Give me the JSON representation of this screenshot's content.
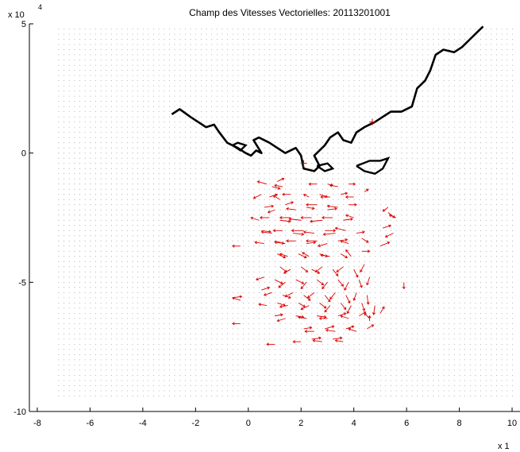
{
  "chart_data": {
    "type": "quiver",
    "title": "Champ des Vitesses Vectorielles: 20113201001",
    "xlabel": "",
    "ylabel": "",
    "x_multiplier_label": "x 1",
    "y_multiplier_label": "x 10",
    "y_multiplier_exponent": "4",
    "xlim": [
      -8.3,
      10.3
    ],
    "ylim": [
      -10,
      5
    ],
    "x_ticks": [
      "-8",
      "-6",
      "-4",
      "-2",
      "0",
      "2",
      "4",
      "6",
      "8",
      "10"
    ],
    "y_ticks": [
      "5",
      "0",
      "-5",
      "-10"
    ],
    "grid_points": {
      "x_range": [
        -7.2,
        10.0
      ],
      "y_range": [
        -9.4,
        4.8
      ],
      "spacing": 0.2,
      "color": "#888888"
    },
    "colors": {
      "vectors": "#dd0000",
      "coastline": "#000000",
      "grid": "#888888"
    },
    "coastline": [
      [
        -2.9,
        1.5
      ],
      [
        -2.6,
        1.7
      ],
      [
        -2.2,
        1.4
      ],
      [
        -1.9,
        1.2
      ],
      [
        -1.6,
        1.0
      ],
      [
        -1.3,
        1.1
      ],
      [
        -1.1,
        0.8
      ],
      [
        -0.8,
        0.4
      ],
      [
        -0.6,
        0.3
      ],
      [
        -0.4,
        0.2
      ],
      [
        -0.1,
        0.0
      ],
      [
        0.1,
        -0.1
      ],
      [
        0.3,
        0.1
      ],
      [
        0.5,
        0.0
      ],
      [
        0.2,
        0.5
      ],
      [
        0.4,
        0.6
      ],
      [
        0.8,
        0.4
      ],
      [
        1.1,
        0.2
      ],
      [
        1.4,
        0.0
      ],
      [
        1.6,
        0.1
      ],
      [
        1.8,
        0.2
      ],
      [
        2.0,
        -0.1
      ],
      [
        2.1,
        -0.6
      ],
      [
        2.5,
        -0.7
      ],
      [
        2.7,
        -0.5
      ],
      [
        2.5,
        -0.1
      ],
      [
        2.9,
        0.3
      ],
      [
        3.1,
        0.6
      ],
      [
        3.4,
        0.8
      ],
      [
        3.6,
        0.5
      ],
      [
        3.9,
        0.4
      ],
      [
        4.1,
        0.8
      ],
      [
        4.4,
        1.0
      ],
      [
        4.8,
        1.2
      ],
      [
        5.1,
        1.4
      ],
      [
        5.4,
        1.6
      ],
      [
        5.8,
        1.6
      ],
      [
        6.2,
        1.8
      ],
      [
        6.4,
        2.5
      ],
      [
        6.7,
        2.8
      ],
      [
        6.9,
        3.2
      ],
      [
        7.1,
        3.8
      ],
      [
        7.4,
        4.0
      ],
      [
        7.8,
        3.9
      ],
      [
        8.1,
        4.1
      ],
      [
        8.4,
        4.4
      ],
      [
        8.7,
        4.7
      ],
      [
        8.9,
        4.9
      ]
    ],
    "coastline_islands": [
      [
        [
          -0.6,
          0.3
        ],
        [
          -0.4,
          0.4
        ],
        [
          -0.1,
          0.3
        ],
        [
          -0.3,
          0.1
        ],
        [
          -0.6,
          0.3
        ]
      ],
      [
        [
          4.1,
          -0.5
        ],
        [
          4.4,
          -0.7
        ],
        [
          4.8,
          -0.8
        ],
        [
          5.1,
          -0.6
        ],
        [
          5.3,
          -0.2
        ],
        [
          5.0,
          -0.3
        ],
        [
          4.6,
          -0.3
        ],
        [
          4.1,
          -0.5
        ]
      ],
      [
        [
          2.6,
          -0.5
        ],
        [
          2.9,
          -0.7
        ],
        [
          3.2,
          -0.6
        ],
        [
          3.0,
          -0.4
        ],
        [
          2.6,
          -0.5
        ]
      ]
    ],
    "markers": [
      {
        "x": 4.7,
        "y": 1.2,
        "symbol": "+"
      },
      {
        "x": 2.1,
        "y": -0.4,
        "symbol": "+"
      }
    ],
    "vectors": [
      [
        0.7,
        -1.2,
        -0.35,
        0.1
      ],
      [
        0.9,
        -1.3,
        0.3,
        -0.08
      ],
      [
        1.1,
        -1.1,
        0.25,
        0.12
      ],
      [
        1.3,
        -1.3,
        -0.3,
        0.05
      ],
      [
        2.6,
        -1.2,
        -0.3,
        0.0
      ],
      [
        3.0,
        -1.2,
        0.2,
        -0.05
      ],
      [
        3.4,
        -1.3,
        -0.3,
        0.05
      ],
      [
        3.8,
        -1.2,
        0.25,
        0.0
      ],
      [
        0.5,
        -1.6,
        -0.3,
        -0.15
      ],
      [
        0.8,
        -1.7,
        0.3,
        0.1
      ],
      [
        1.2,
        -1.8,
        -0.25,
        0.15
      ],
      [
        1.6,
        -1.6,
        -0.3,
        0.0
      ],
      [
        2.3,
        -1.7,
        -0.2,
        0.1
      ],
      [
        2.7,
        -1.6,
        0.3,
        -0.1
      ],
      [
        3.1,
        -1.7,
        -0.35,
        0.0
      ],
      [
        3.5,
        -1.6,
        0.25,
        0.05
      ],
      [
        4.0,
        -1.7,
        -0.3,
        0.0
      ],
      [
        4.4,
        -1.5,
        0.15,
        0.1
      ],
      [
        0.6,
        -2.1,
        0.35,
        0.05
      ],
      [
        1.0,
        -2.2,
        -0.25,
        -0.1
      ],
      [
        1.4,
        -2.0,
        0.3,
        0.1
      ],
      [
        1.8,
        -2.2,
        -0.35,
        0.05
      ],
      [
        2.2,
        -2.1,
        0.3,
        -0.05
      ],
      [
        2.6,
        -2.0,
        -0.4,
        0.0
      ],
      [
        3.0,
        -2.2,
        0.35,
        0.05
      ],
      [
        3.4,
        -2.1,
        -0.4,
        0.05
      ],
      [
        3.8,
        -2.0,
        0.3,
        0.0
      ],
      [
        0.4,
        -2.6,
        -0.3,
        0.1
      ],
      [
        0.8,
        -2.5,
        -0.35,
        0.0
      ],
      [
        1.2,
        -2.6,
        0.4,
        -0.05
      ],
      [
        1.6,
        -2.5,
        -0.4,
        0.0
      ],
      [
        2.0,
        -2.6,
        -0.45,
        0.05
      ],
      [
        2.4,
        -2.5,
        -0.4,
        0.0
      ],
      [
        2.8,
        -2.6,
        -0.45,
        -0.05
      ],
      [
        3.2,
        -2.5,
        -0.4,
        0.0
      ],
      [
        3.6,
        -2.6,
        0.35,
        0.05
      ],
      [
        4.0,
        -2.5,
        -0.3,
        0.1
      ],
      [
        5.3,
        -2.3,
        0.25,
        -0.2
      ],
      [
        5.6,
        -2.5,
        -0.25,
        0.1
      ],
      [
        0.5,
        -3.0,
        0.35,
        -0.05
      ],
      [
        0.9,
        -3.1,
        -0.4,
        0.05
      ],
      [
        1.3,
        -3.0,
        -0.35,
        0.0
      ],
      [
        1.7,
        -3.1,
        0.4,
        -0.05
      ],
      [
        2.1,
        -3.0,
        -0.45,
        0.0
      ],
      [
        2.5,
        -3.1,
        -0.4,
        0.05
      ],
      [
        2.9,
        -3.0,
        0.4,
        0.0
      ],
      [
        3.3,
        -3.1,
        -0.45,
        -0.05
      ],
      [
        3.7,
        -3.0,
        -0.4,
        0.1
      ],
      [
        4.1,
        -3.1,
        0.3,
        0.05
      ],
      [
        5.1,
        -2.9,
        0.3,
        0.1
      ],
      [
        5.5,
        -3.1,
        -0.3,
        -0.15
      ],
      [
        0.6,
        -3.5,
        -0.35,
        0.05
      ],
      [
        1.0,
        -3.4,
        0.35,
        -0.1
      ],
      [
        1.4,
        -3.5,
        -0.4,
        0.05
      ],
      [
        1.8,
        -3.4,
        -0.35,
        0.0
      ],
      [
        2.2,
        -3.5,
        0.35,
        0.05
      ],
      [
        2.6,
        -3.4,
        -0.4,
        0.0
      ],
      [
        3.0,
        -3.5,
        -0.35,
        -0.1
      ],
      [
        3.4,
        -3.4,
        0.35,
        0.05
      ],
      [
        3.8,
        -3.5,
        -0.3,
        0.1
      ],
      [
        4.3,
        -3.3,
        0.25,
        -0.15
      ],
      [
        5.0,
        -3.6,
        0.35,
        0.15
      ],
      [
        -0.3,
        -3.6,
        -0.3,
        0.0
      ],
      [
        1.1,
        -3.9,
        0.3,
        -0.15
      ],
      [
        1.5,
        -4.0,
        -0.3,
        0.1
      ],
      [
        1.9,
        -3.9,
        0.3,
        -0.15
      ],
      [
        2.3,
        -4.0,
        -0.25,
        0.15
      ],
      [
        2.7,
        -3.9,
        0.3,
        -0.1
      ],
      [
        3.1,
        -4.0,
        -0.35,
        0.05
      ],
      [
        3.5,
        -3.9,
        0.25,
        -0.15
      ],
      [
        3.9,
        -4.0,
        -0.2,
        0.25
      ],
      [
        4.3,
        -3.8,
        0.3,
        0.0
      ],
      [
        1.2,
        -4.4,
        0.25,
        -0.2
      ],
      [
        1.6,
        -4.5,
        -0.25,
        -0.15
      ],
      [
        2.0,
        -4.4,
        0.25,
        -0.2
      ],
      [
        2.4,
        -4.5,
        0.3,
        -0.15
      ],
      [
        2.8,
        -4.4,
        -0.25,
        -0.2
      ],
      [
        3.2,
        -4.5,
        0.2,
        -0.25
      ],
      [
        3.6,
        -4.4,
        -0.25,
        -0.2
      ],
      [
        4.0,
        -4.5,
        0.15,
        -0.3
      ],
      [
        4.4,
        -4.3,
        -0.15,
        -0.3
      ],
      [
        0.6,
        -4.8,
        -0.3,
        -0.1
      ],
      [
        1.0,
        -4.9,
        0.3,
        -0.15
      ],
      [
        1.4,
        -5.0,
        -0.25,
        -0.2
      ],
      [
        1.8,
        -4.9,
        0.3,
        -0.15
      ],
      [
        2.2,
        -5.0,
        -0.2,
        -0.25
      ],
      [
        2.6,
        -4.9,
        0.25,
        -0.2
      ],
      [
        3.0,
        -5.0,
        -0.2,
        -0.25
      ],
      [
        3.4,
        -4.9,
        0.2,
        -0.25
      ],
      [
        3.8,
        -5.0,
        -0.15,
        -0.3
      ],
      [
        4.2,
        -4.9,
        0.1,
        -0.3
      ],
      [
        4.6,
        -4.8,
        -0.1,
        -0.3
      ],
      [
        5.9,
        -5.0,
        0.0,
        -0.25
      ],
      [
        0.5,
        -5.3,
        0.3,
        0.1
      ],
      [
        0.9,
        -5.4,
        -0.3,
        -0.1
      ],
      [
        1.3,
        -5.5,
        0.3,
        -0.1
      ],
      [
        1.7,
        -5.4,
        -0.3,
        -0.15
      ],
      [
        2.1,
        -5.5,
        0.25,
        -0.2
      ],
      [
        2.5,
        -5.4,
        -0.25,
        -0.2
      ],
      [
        2.9,
        -5.5,
        0.2,
        -0.25
      ],
      [
        3.3,
        -5.4,
        -0.2,
        -0.25
      ],
      [
        3.7,
        -5.5,
        0.15,
        -0.3
      ],
      [
        4.1,
        -5.4,
        -0.1,
        -0.3
      ],
      [
        4.5,
        -5.5,
        0.05,
        -0.35
      ],
      [
        -0.6,
        -5.6,
        0.35,
        0.05
      ],
      [
        -0.3,
        -5.7,
        -0.3,
        0.1
      ],
      [
        0.7,
        -5.9,
        -0.3,
        0.05
      ],
      [
        1.1,
        -5.8,
        0.3,
        -0.1
      ],
      [
        1.5,
        -5.9,
        -0.3,
        -0.05
      ],
      [
        1.9,
        -5.8,
        0.25,
        -0.15
      ],
      [
        2.3,
        -5.9,
        -0.3,
        -0.15
      ],
      [
        2.7,
        -5.8,
        0.25,
        -0.2
      ],
      [
        3.1,
        -5.9,
        -0.2,
        -0.25
      ],
      [
        3.5,
        -5.8,
        0.2,
        -0.25
      ],
      [
        3.9,
        -5.9,
        -0.15,
        -0.3
      ],
      [
        4.3,
        -5.8,
        0.1,
        -0.3
      ],
      [
        4.8,
        -5.9,
        -0.05,
        -0.35
      ],
      [
        1.0,
        -6.3,
        0.3,
        0.05
      ],
      [
        1.4,
        -6.4,
        -0.3,
        -0.1
      ],
      [
        1.8,
        -6.3,
        0.3,
        -0.05
      ],
      [
        2.2,
        -6.4,
        -0.3,
        0.05
      ],
      [
        2.6,
        -6.3,
        0.35,
        -0.05
      ],
      [
        3.0,
        -6.4,
        -0.3,
        0.0
      ],
      [
        3.4,
        -6.3,
        0.3,
        0.1
      ],
      [
        3.8,
        -6.4,
        -0.3,
        0.1
      ],
      [
        4.2,
        -6.3,
        0.25,
        0.15
      ],
      [
        4.6,
        -6.4,
        -0.2,
        0.2
      ],
      [
        5.0,
        -6.2,
        0.15,
        0.25
      ],
      [
        -0.3,
        -6.6,
        -0.3,
        0.0
      ],
      [
        2.1,
        -6.8,
        0.3,
        0.05
      ],
      [
        2.5,
        -6.9,
        -0.35,
        0.0
      ],
      [
        2.9,
        -6.8,
        0.35,
        0.1
      ],
      [
        3.3,
        -6.9,
        -0.35,
        0.05
      ],
      [
        3.7,
        -6.8,
        0.3,
        0.1
      ],
      [
        4.1,
        -6.9,
        -0.3,
        0.1
      ],
      [
        4.5,
        -6.8,
        0.25,
        0.15
      ],
      [
        2.0,
        -7.3,
        -0.3,
        0.0
      ],
      [
        2.4,
        -7.2,
        0.35,
        0.05
      ],
      [
        2.8,
        -7.3,
        -0.35,
        0.05
      ],
      [
        3.2,
        -7.2,
        0.35,
        0.05
      ],
      [
        3.6,
        -7.3,
        -0.3,
        0.05
      ],
      [
        1.0,
        -7.4,
        -0.3,
        0.0
      ],
      [
        4.6,
        -6.5,
        0.0,
        0.2
      ],
      [
        5.3,
        -2.1,
        -0.2,
        -0.15
      ]
    ]
  }
}
